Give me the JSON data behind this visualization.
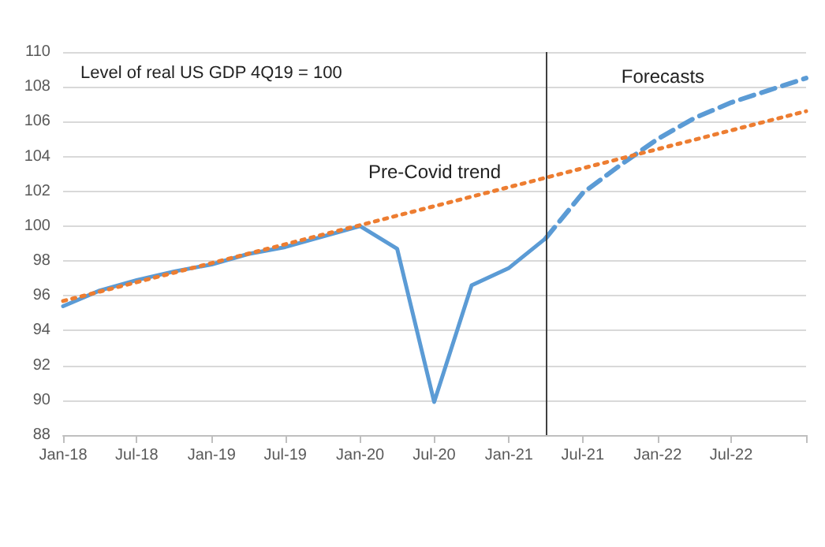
{
  "chart_data": {
    "type": "line",
    "title": "Level of real US GDP 4Q19 = 100",
    "xlim": [
      "2018-01",
      "2023-01"
    ],
    "xticks": [
      {
        "value": "2018-01",
        "label": "Jan-18"
      },
      {
        "value": "2018-07",
        "label": "Jul-18"
      },
      {
        "value": "2019-01",
        "label": "Jan-19"
      },
      {
        "value": "2019-07",
        "label": "Jul-19"
      },
      {
        "value": "2020-01",
        "label": "Jan-20"
      },
      {
        "value": "2020-07",
        "label": "Jul-20"
      },
      {
        "value": "2021-01",
        "label": "Jan-21"
      },
      {
        "value": "2021-07",
        "label": "Jul-21"
      },
      {
        "value": "2022-01",
        "label": "Jan-22"
      },
      {
        "value": "2022-07",
        "label": "Jul-22"
      },
      {
        "value": "2023-01",
        "label": null
      }
    ],
    "ylim": [
      88,
      110
    ],
    "yticks": [
      88,
      90,
      92,
      94,
      96,
      98,
      100,
      102,
      104,
      106,
      108,
      110
    ],
    "grid": "y",
    "marker": "none",
    "series": [
      {
        "color": "#5b9bd5",
        "line_style": "solid",
        "x": [
          "2018-01",
          "2018-04",
          "2018-07",
          "2018-10",
          "2019-01",
          "2019-04",
          "2019-07",
          "2019-10",
          "2020-01",
          "2020-04",
          "2020-07",
          "2020-10",
          "2021-01",
          "2021-04"
        ],
        "values": [
          95.4,
          96.3,
          96.9,
          97.4,
          97.8,
          98.4,
          98.8,
          99.4,
          100,
          98.7,
          89.9,
          96.6,
          97.6,
          99.3
        ]
      },
      {
        "name": "Forecasts",
        "color": "#5b9bd5",
        "line_style": "dashed",
        "x": [
          "2021-04",
          "2021-07",
          "2021-10",
          "2022-01",
          "2022-04",
          "2022-07",
          "2022-10",
          "2023-01"
        ],
        "values": [
          99.3,
          101.9,
          103.5,
          105.0,
          106.2,
          107.1,
          107.8,
          108.5
        ]
      },
      {
        "name": "Pre-Covid trend",
        "color": "#ed7d31",
        "line_style": "dotted",
        "x": [
          "2018-01",
          "2023-01"
        ],
        "values": [
          95.7,
          106.6
        ]
      }
    ],
    "ref_lines": [
      {
        "axis": "x",
        "value": "2021-04",
        "color": "#404040",
        "line_style": "solid"
      }
    ]
  }
}
